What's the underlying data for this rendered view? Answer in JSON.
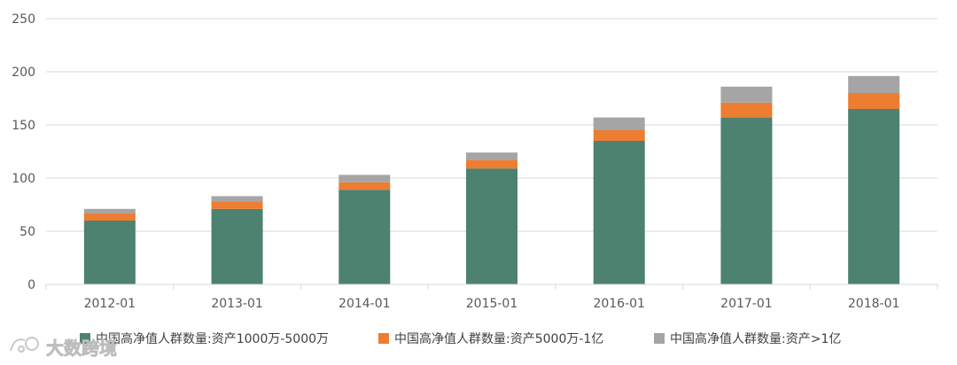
{
  "chart_data": {
    "type": "bar",
    "stacked": true,
    "categories": [
      "2012-01",
      "2013-01",
      "2014-01",
      "2015-01",
      "2016-01",
      "2017-01",
      "2018-01"
    ],
    "series": [
      {
        "name": "中国高净值人群数量:资产1000万-5000万",
        "color": "#4d8170",
        "values": [
          60,
          71,
          89,
          109,
          135,
          157,
          165
        ]
      },
      {
        "name": "中国高净值人群数量:资产5000万-1亿",
        "color": "#ed7d31",
        "values": [
          7,
          7,
          7,
          8,
          10,
          14,
          15
        ]
      },
      {
        "name": "中国高净值人群数量:资产>1亿",
        "color": "#a5a5a5",
        "values": [
          4,
          5,
          7,
          7,
          12,
          15,
          16
        ]
      }
    ],
    "y_ticks": [
      "0",
      "50",
      "100",
      "150",
      "200",
      "250"
    ],
    "ylim": [
      0,
      250
    ],
    "grid": true,
    "legend_position": "bottom"
  },
  "watermark": {
    "text": "大数跨境"
  }
}
